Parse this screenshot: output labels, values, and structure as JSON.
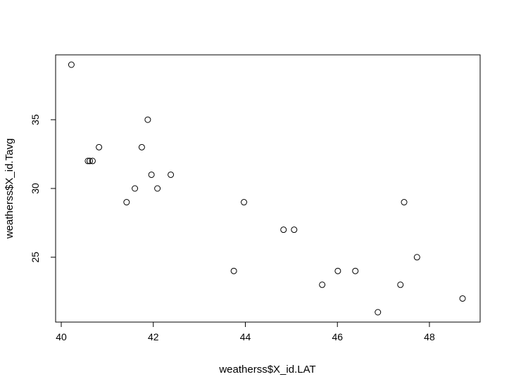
{
  "chart_data": {
    "type": "scatter",
    "title": "",
    "xlabel": "weatherss$X_id.LAT",
    "ylabel": "weatherss$X_id.Tavg",
    "xlim": [
      40.0,
      48.75
    ],
    "ylim": [
      21.0,
      39.0
    ],
    "xticks": [
      40,
      42,
      44,
      46,
      48
    ],
    "yticks": [
      25,
      30,
      35
    ],
    "grid": false,
    "legend": "none",
    "marker": "open-circle",
    "points": [
      {
        "x": 40.22,
        "y": 39
      },
      {
        "x": 40.58,
        "y": 32
      },
      {
        "x": 40.62,
        "y": 32
      },
      {
        "x": 40.68,
        "y": 32
      },
      {
        "x": 40.82,
        "y": 33
      },
      {
        "x": 41.42,
        "y": 29
      },
      {
        "x": 41.6,
        "y": 30
      },
      {
        "x": 41.75,
        "y": 33
      },
      {
        "x": 41.88,
        "y": 35
      },
      {
        "x": 41.96,
        "y": 31
      },
      {
        "x": 42.09,
        "y": 30
      },
      {
        "x": 42.38,
        "y": 31
      },
      {
        "x": 43.75,
        "y": 24
      },
      {
        "x": 43.97,
        "y": 29
      },
      {
        "x": 44.83,
        "y": 27
      },
      {
        "x": 45.06,
        "y": 27
      },
      {
        "x": 45.67,
        "y": 23
      },
      {
        "x": 46.01,
        "y": 24
      },
      {
        "x": 46.39,
        "y": 24
      },
      {
        "x": 46.88,
        "y": 21
      },
      {
        "x": 47.37,
        "y": 23
      },
      {
        "x": 47.45,
        "y": 29
      },
      {
        "x": 47.73,
        "y": 25
      },
      {
        "x": 48.72,
        "y": 22
      }
    ]
  }
}
